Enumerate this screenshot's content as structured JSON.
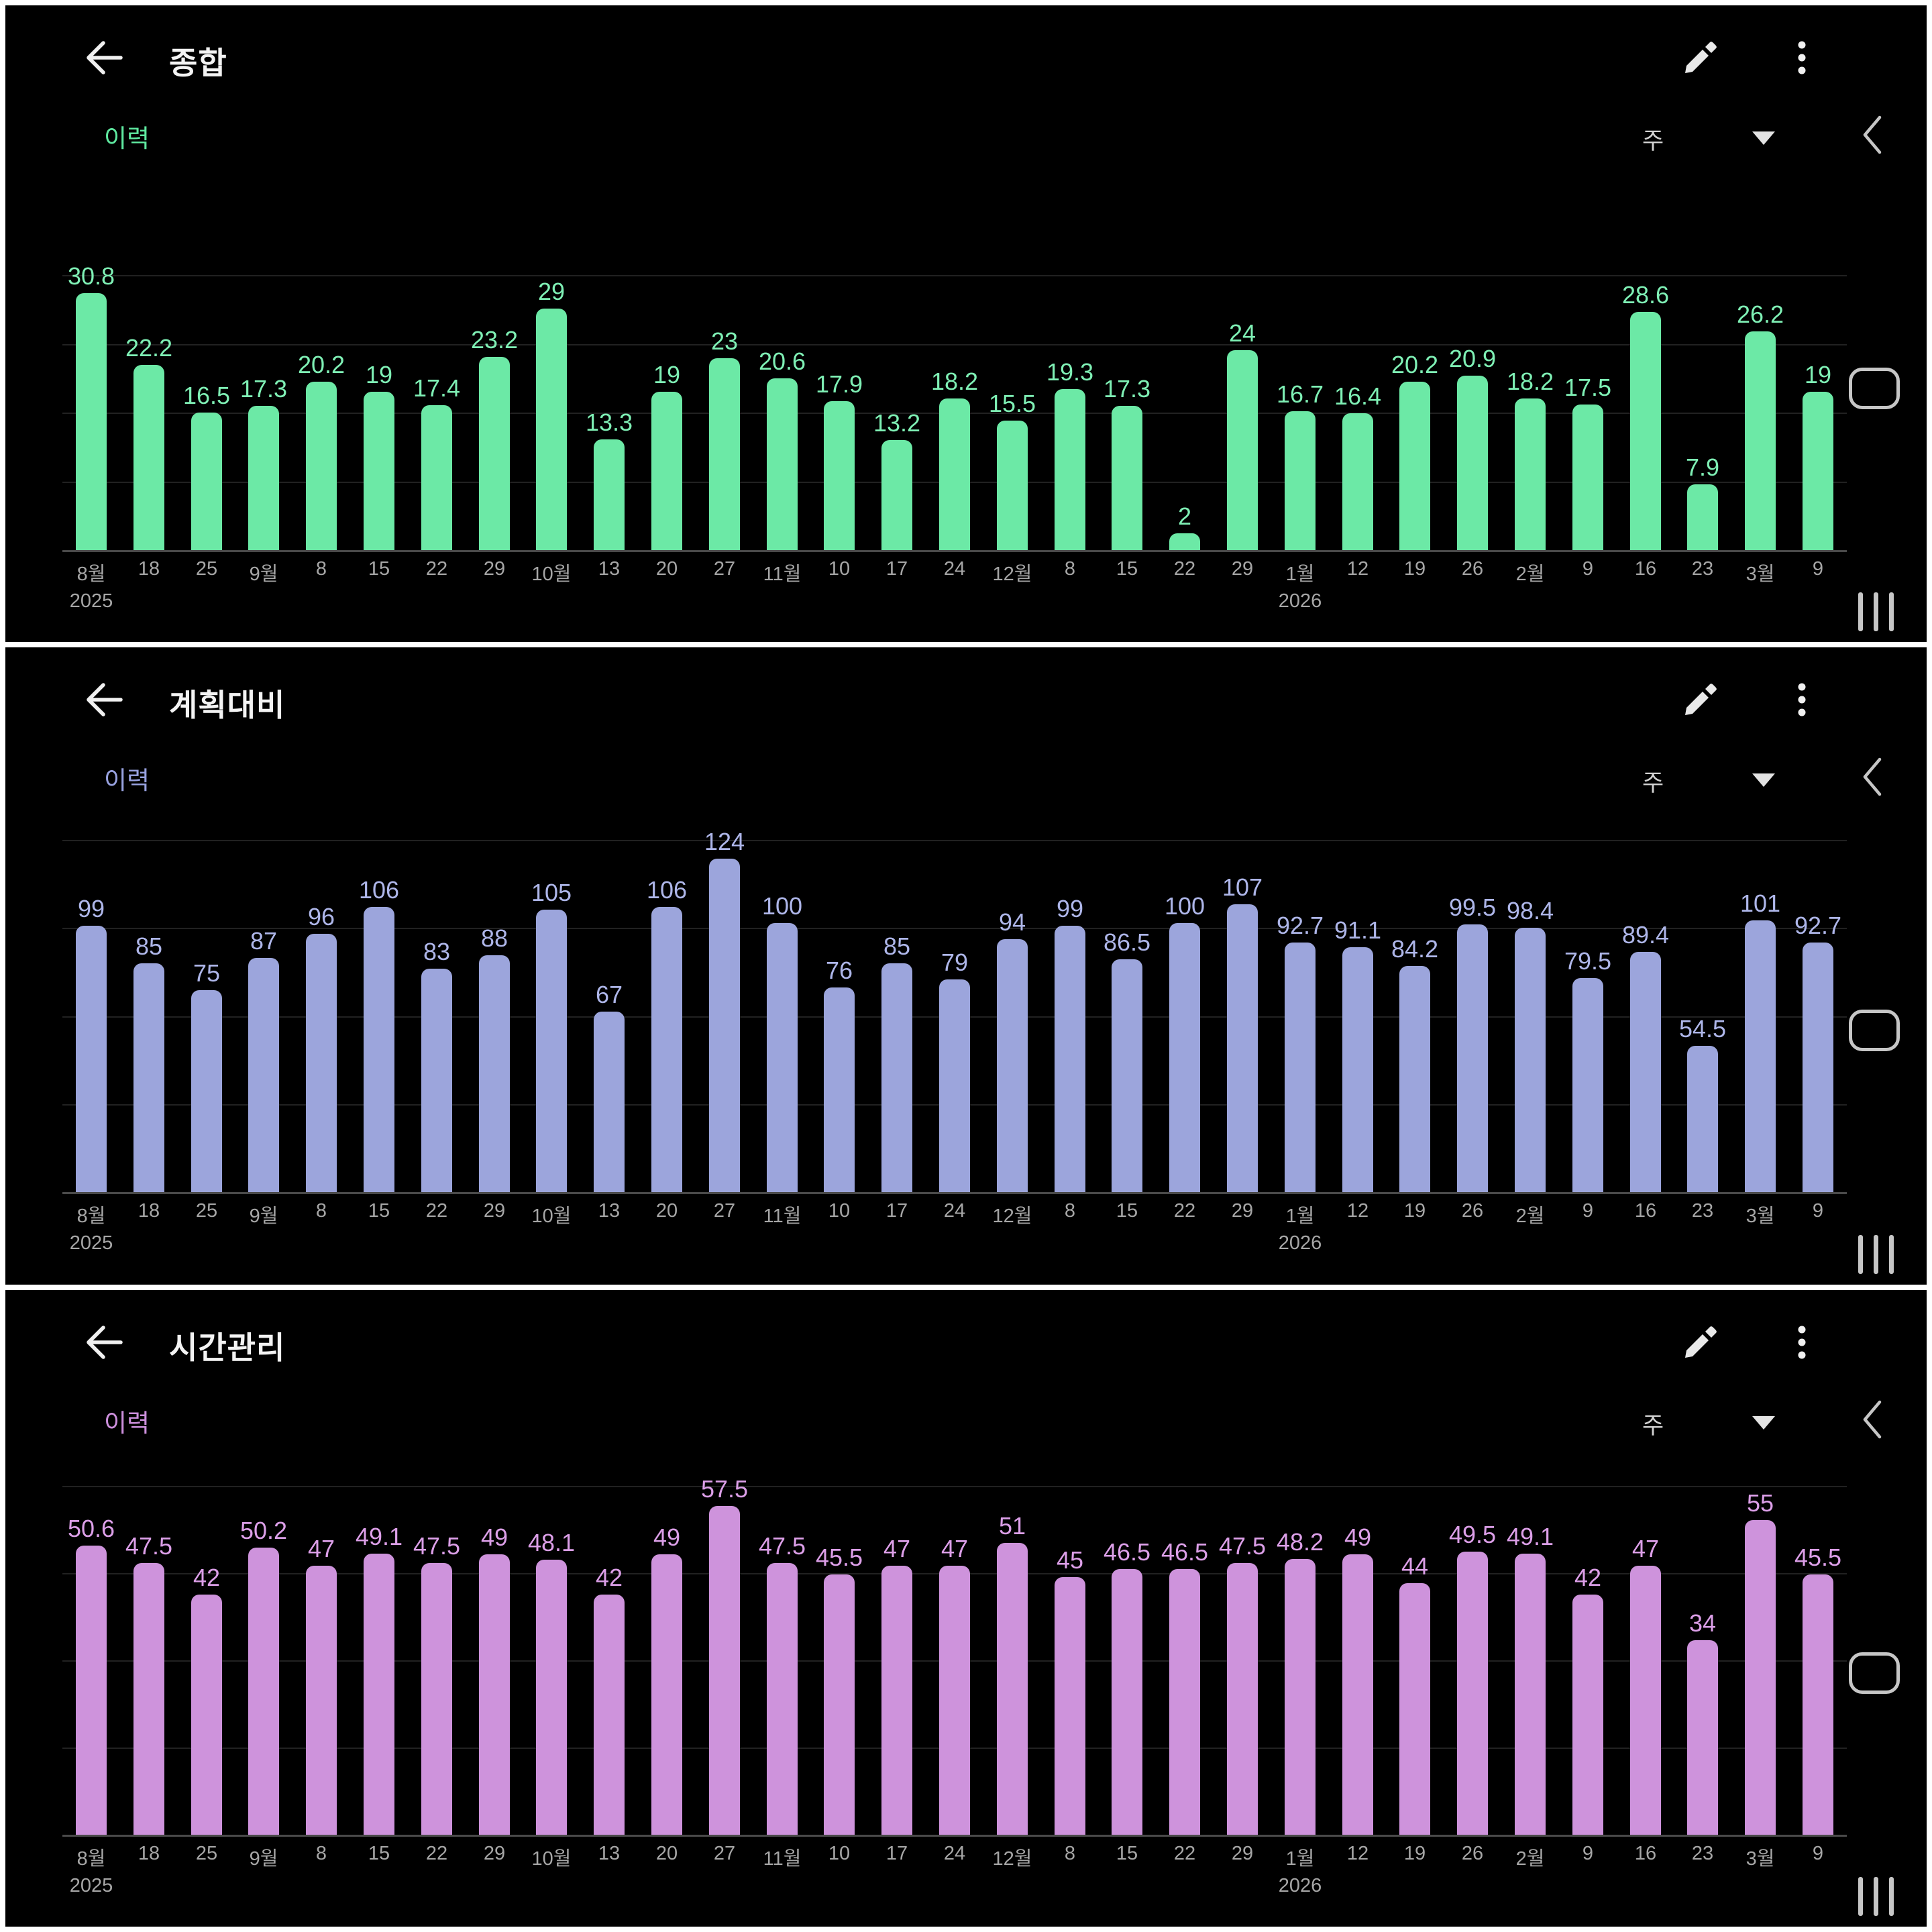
{
  "app": {
    "background": "#000000",
    "separator_color": "#ffffff"
  },
  "panels": [
    {
      "title": "종합",
      "history_label": "이력",
      "period_label": "주",
      "accent": "#5fe9a0",
      "bar_color": "#6ce9a6",
      "value_label_color": "#7ff0b5",
      "icons": [
        "back-arrow",
        "pencil-edit",
        "kebab-menu",
        "triangle-down",
        "chevron-left",
        "home-pill",
        "recent-bars"
      ]
    },
    {
      "title": "계획대비",
      "history_label": "이력",
      "period_label": "주",
      "accent": "#98a2e0",
      "bar_color": "#9ca5dc",
      "value_label_color": "#aeb6e9",
      "icons": [
        "back-arrow",
        "pencil-edit",
        "kebab-menu",
        "triangle-down",
        "chevron-left",
        "home-pill",
        "recent-bars"
      ]
    },
    {
      "title": "시간관리",
      "history_label": "이력",
      "period_label": "주",
      "accent": "#cc8fdc",
      "bar_color": "#ce93dc",
      "value_label_color": "#dc9fe8",
      "icons": [
        "back-arrow",
        "pencil-edit",
        "kebab-menu",
        "triangle-down",
        "chevron-left",
        "home-pill",
        "recent-bars"
      ]
    }
  ],
  "x_axis": {
    "categories": [
      "8월",
      "18",
      "25",
      "9월",
      "8",
      "15",
      "22",
      "29",
      "10월",
      "13",
      "20",
      "27",
      "11월",
      "10",
      "17",
      "24",
      "12월",
      "8",
      "15",
      "22",
      "29",
      "1월",
      "12",
      "19",
      "26",
      "2월",
      "9",
      "16",
      "23",
      "3월",
      "9"
    ],
    "year_rows": [
      {
        "index": 0,
        "label": "2025"
      },
      {
        "index": 21,
        "label": "2026"
      }
    ]
  },
  "chart_data": [
    {
      "type": "bar",
      "title": "종합",
      "categories": [
        "8월",
        "18",
        "25",
        "9월",
        "8",
        "15",
        "22",
        "29",
        "10월",
        "13",
        "20",
        "27",
        "11월",
        "10",
        "17",
        "24",
        "12월",
        "8",
        "15",
        "22",
        "29",
        "1월",
        "12",
        "19",
        "26",
        "2월",
        "9",
        "16",
        "23",
        "3월",
        "9"
      ],
      "values": [
        30.8,
        22.2,
        16.5,
        17.3,
        20.2,
        19,
        17.4,
        23.2,
        29,
        13.3,
        19,
        23,
        20.6,
        17.9,
        13.2,
        18.2,
        15.5,
        19.3,
        17.3,
        2,
        24,
        16.7,
        16.4,
        20.2,
        20.9,
        18.2,
        17.5,
        28.6,
        7.9,
        26.2,
        19
      ],
      "ylim": [
        0,
        33
      ],
      "grid": true,
      "gridline_count": 4,
      "legend": false,
      "bar_color": "#6ce9a6"
    },
    {
      "type": "bar",
      "title": "계획대비",
      "categories": [
        "8월",
        "18",
        "25",
        "9월",
        "8",
        "15",
        "22",
        "29",
        "10월",
        "13",
        "20",
        "27",
        "11월",
        "10",
        "17",
        "24",
        "12월",
        "8",
        "15",
        "22",
        "29",
        "1월",
        "12",
        "19",
        "26",
        "2월",
        "9",
        "16",
        "23",
        "3월",
        "9"
      ],
      "values": [
        99,
        85,
        75,
        87,
        96,
        106,
        83,
        88,
        105,
        67,
        106,
        124,
        100,
        76,
        85,
        79,
        94,
        99,
        86.5,
        100,
        107,
        92.7,
        91.1,
        84.2,
        99.5,
        98.4,
        79.5,
        89.4,
        54.5,
        101,
        92.7
      ],
      "ylim": [
        0,
        131
      ],
      "grid": true,
      "gridline_count": 4,
      "legend": false,
      "bar_color": "#9ca5dc"
    },
    {
      "type": "bar",
      "title": "시간관리",
      "categories": [
        "8월",
        "18",
        "25",
        "9월",
        "8",
        "15",
        "22",
        "29",
        "10월",
        "13",
        "20",
        "27",
        "11월",
        "10",
        "17",
        "24",
        "12월",
        "8",
        "15",
        "22",
        "29",
        "1월",
        "12",
        "19",
        "26",
        "2월",
        "9",
        "16",
        "23",
        "3월",
        "9"
      ],
      "values": [
        50.6,
        47.5,
        42,
        50.2,
        47,
        49.1,
        47.5,
        49,
        48.1,
        42,
        49,
        57.5,
        47.5,
        45.5,
        47,
        47,
        51,
        45,
        46.5,
        46.5,
        47.5,
        48.2,
        49,
        44,
        49.5,
        49.1,
        42,
        47,
        34,
        55,
        45.5
      ],
      "ylim": [
        0,
        61
      ],
      "grid": true,
      "gridline_count": 4,
      "legend": false,
      "bar_color": "#ce93dc"
    }
  ]
}
